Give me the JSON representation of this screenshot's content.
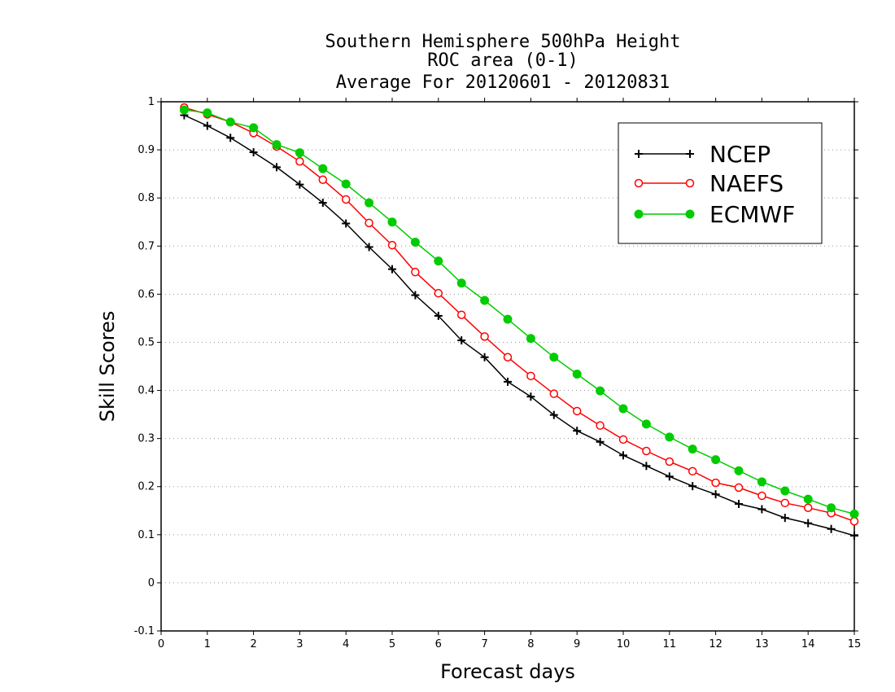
{
  "chart_data": {
    "type": "line",
    "title_lines": [
      "Southern Hemisphere 500hPa Height",
      "ROC area (0-1)",
      "Average For 20120601 - 20120831"
    ],
    "xlabel": "Forecast days",
    "ylabel": "Skill Scores",
    "xlim": [
      0,
      15
    ],
    "ylim": [
      -0.1,
      1
    ],
    "xticks": [
      "0",
      "1",
      "2",
      "3",
      "4",
      "5",
      "6",
      "7",
      "8",
      "9",
      "10",
      "11",
      "12",
      "13",
      "14",
      "15"
    ],
    "yticks": [
      "-0.1",
      "0",
      "0.1",
      "0.2",
      "0.3",
      "0.4",
      "0.5",
      "0.6",
      "0.7",
      "0.8",
      "0.9",
      "1"
    ],
    "grid": "horizontal dotted",
    "legend_position": "top-right",
    "x": [
      0.5,
      1,
      1.5,
      2,
      2.5,
      3,
      3.5,
      4,
      4.5,
      5,
      5.5,
      6,
      6.5,
      7,
      7.5,
      8,
      8.5,
      9,
      9.5,
      10,
      10.5,
      11,
      11.5,
      12,
      12.5,
      13,
      13.5,
      14,
      14.5,
      15
    ],
    "series": [
      {
        "name": "NCEP",
        "color": "#000000",
        "marker": "plus",
        "values": [
          0.972,
          0.95,
          0.925,
          0.895,
          0.864,
          0.828,
          0.79,
          0.747,
          0.698,
          0.652,
          0.598,
          0.555,
          0.504,
          0.469,
          0.418,
          0.387,
          0.349,
          0.316,
          0.293,
          0.265,
          0.243,
          0.221,
          0.201,
          0.184,
          0.164,
          0.153,
          0.135,
          0.124,
          0.112,
          0.098
        ]
      },
      {
        "name": "NAEFS",
        "color": "#ff0000",
        "marker": "open-circle",
        "values": [
          0.988,
          0.974,
          0.958,
          0.935,
          0.907,
          0.876,
          0.838,
          0.797,
          0.748,
          0.702,
          0.646,
          0.602,
          0.557,
          0.512,
          0.469,
          0.43,
          0.393,
          0.357,
          0.327,
          0.298,
          0.274,
          0.252,
          0.232,
          0.208,
          0.198,
          0.181,
          0.166,
          0.156,
          0.145,
          0.128
        ]
      },
      {
        "name": "ECMWF",
        "color": "#00cc00",
        "marker": "filled-circle",
        "values": [
          0.983,
          0.977,
          0.958,
          0.946,
          0.911,
          0.894,
          0.861,
          0.829,
          0.79,
          0.75,
          0.708,
          0.669,
          0.623,
          0.587,
          0.548,
          0.508,
          0.469,
          0.434,
          0.399,
          0.362,
          0.33,
          0.303,
          0.278,
          0.256,
          0.233,
          0.21,
          0.191,
          0.174,
          0.156,
          0.143
        ]
      }
    ]
  }
}
